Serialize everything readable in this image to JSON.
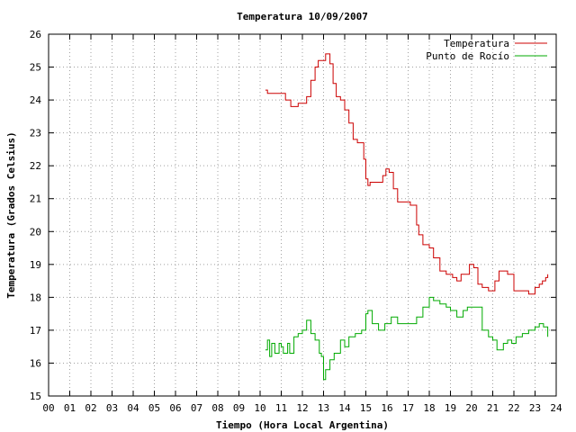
{
  "chart_data": {
    "type": "line",
    "title": "Temperatura 10/09/2007",
    "xlabel": "Tiempo (Hora Local Argentina)",
    "ylabel": "Temperatura (Grados Celsius)",
    "xlim": [
      0,
      24
    ],
    "ylim": [
      15,
      26
    ],
    "x_ticks": [
      "00",
      "01",
      "02",
      "03",
      "04",
      "05",
      "06",
      "07",
      "08",
      "09",
      "10",
      "11",
      "12",
      "13",
      "14",
      "15",
      "16",
      "17",
      "18",
      "19",
      "20",
      "21",
      "22",
      "23",
      "24"
    ],
    "y_ticks": [
      15,
      16,
      17,
      18,
      19,
      20,
      21,
      22,
      23,
      24,
      25,
      26
    ],
    "grid": true,
    "legend_position": "top-right",
    "series": [
      {
        "name": "Temperatura",
        "color": "#cc0000",
        "x": [
          10.25,
          10.35,
          10.45,
          10.6,
          11.0,
          11.2,
          11.4,
          11.45,
          11.8,
          11.95,
          12.2,
          12.4,
          12.6,
          12.75,
          12.9,
          13.1,
          13.3,
          13.45,
          13.6,
          13.8,
          14.0,
          14.2,
          14.4,
          14.6,
          14.8,
          14.9,
          15.0,
          15.1,
          15.2,
          15.5,
          15.7,
          15.8,
          15.95,
          16.1,
          16.3,
          16.5,
          16.8,
          17.1,
          17.4,
          17.5,
          17.7,
          17.9,
          18.0,
          18.2,
          18.5,
          18.8,
          19.1,
          19.3,
          19.5,
          19.7,
          19.9,
          20.1,
          20.3,
          20.5,
          20.8,
          21.1,
          21.3,
          21.5,
          21.7,
          22.0,
          22.3,
          22.5,
          22.7,
          23.0,
          23.2,
          23.35,
          23.5,
          23.6
        ],
        "y": [
          24.3,
          24.2,
          24.2,
          24.2,
          24.2,
          24.0,
          24.0,
          23.8,
          23.9,
          23.9,
          24.1,
          24.6,
          25.0,
          25.2,
          25.2,
          25.4,
          25.1,
          24.5,
          24.1,
          24.0,
          23.7,
          23.3,
          22.8,
          22.7,
          22.7,
          22.2,
          21.6,
          21.4,
          21.5,
          21.5,
          21.5,
          21.7,
          21.9,
          21.8,
          21.3,
          20.9,
          20.9,
          20.8,
          20.2,
          19.9,
          19.6,
          19.6,
          19.5,
          19.2,
          18.8,
          18.7,
          18.6,
          18.5,
          18.7,
          18.7,
          19.0,
          18.9,
          18.4,
          18.3,
          18.2,
          18.5,
          18.8,
          18.8,
          18.7,
          18.2,
          18.2,
          18.2,
          18.1,
          18.3,
          18.4,
          18.5,
          18.6,
          18.7
        ]
      },
      {
        "name": "Punto de Rocío",
        "color": "#00aa00",
        "x": [
          10.25,
          10.35,
          10.45,
          10.55,
          10.7,
          10.9,
          11.0,
          11.1,
          11.3,
          11.4,
          11.6,
          11.8,
          12.0,
          12.2,
          12.4,
          12.6,
          12.8,
          12.9,
          13.0,
          13.1,
          13.3,
          13.5,
          13.8,
          14.0,
          14.2,
          14.5,
          14.8,
          15.0,
          15.1,
          15.3,
          15.6,
          15.9,
          16.2,
          16.5,
          16.8,
          17.1,
          17.4,
          17.7,
          18.0,
          18.2,
          18.5,
          18.8,
          19.0,
          19.3,
          19.6,
          19.8,
          20.0,
          20.3,
          20.5,
          20.8,
          21.0,
          21.2,
          21.5,
          21.7,
          21.9,
          22.1,
          22.4,
          22.7,
          23.0,
          23.2,
          23.4,
          23.6
        ],
        "y": [
          16.4,
          16.7,
          16.2,
          16.6,
          16.3,
          16.6,
          16.5,
          16.3,
          16.6,
          16.3,
          16.8,
          16.9,
          17.0,
          17.3,
          16.9,
          16.7,
          16.3,
          16.2,
          15.5,
          15.8,
          16.1,
          16.3,
          16.7,
          16.5,
          16.8,
          16.9,
          17.0,
          17.5,
          17.6,
          17.2,
          17.0,
          17.2,
          17.4,
          17.2,
          17.2,
          17.2,
          17.4,
          17.7,
          18.0,
          17.9,
          17.8,
          17.7,
          17.6,
          17.4,
          17.6,
          17.7,
          17.7,
          17.7,
          17.0,
          16.8,
          16.7,
          16.4,
          16.6,
          16.7,
          16.6,
          16.8,
          16.9,
          17.0,
          17.1,
          17.2,
          17.1,
          16.8
        ]
      }
    ]
  }
}
